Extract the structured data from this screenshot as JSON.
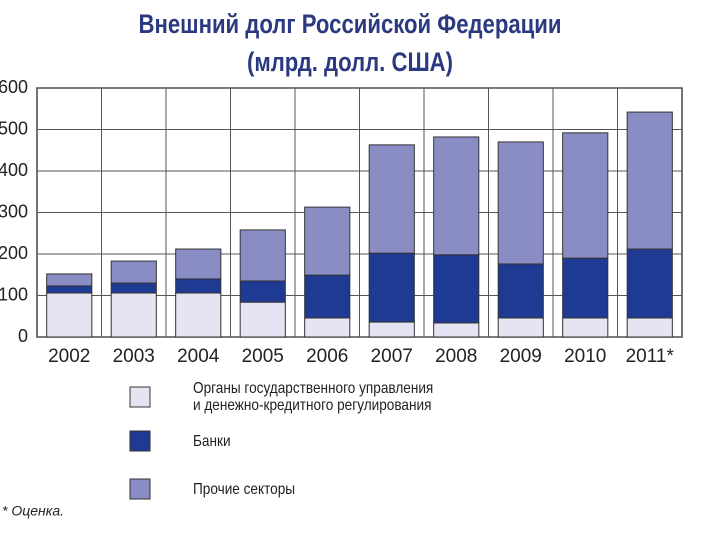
{
  "chart_data": {
    "type": "stacked-bar",
    "title": "Внешний долг Российской Федерации",
    "subtitle": "(млрд. долл. США)",
    "categories": [
      "2002",
      "2003",
      "2004",
      "2005",
      "2006",
      "2007",
      "2008",
      "2009",
      "2010",
      "2011*"
    ],
    "series": [
      {
        "name": "Органы государственного управления\nи денежно-кредитного регулирования",
        "color": "#e4e4f2",
        "values": [
          106,
          106,
          106,
          84,
          46,
          36,
          34,
          46,
          46,
          46
        ]
      },
      {
        "name": "Банки",
        "color": "#1f3a93",
        "values": [
          17,
          24,
          34,
          51,
          103,
          166,
          164,
          130,
          144,
          166
        ]
      },
      {
        "name": "Прочие секторы",
        "color": "#8a8cc4",
        "values": [
          29,
          53,
          72,
          123,
          164,
          261,
          284,
          294,
          302,
          330
        ]
      }
    ],
    "ylim": [
      0,
      600
    ],
    "yticks": [
      0,
      100,
      200,
      300,
      400,
      500,
      600
    ],
    "grid": true,
    "footnote": "* Оценка."
  }
}
